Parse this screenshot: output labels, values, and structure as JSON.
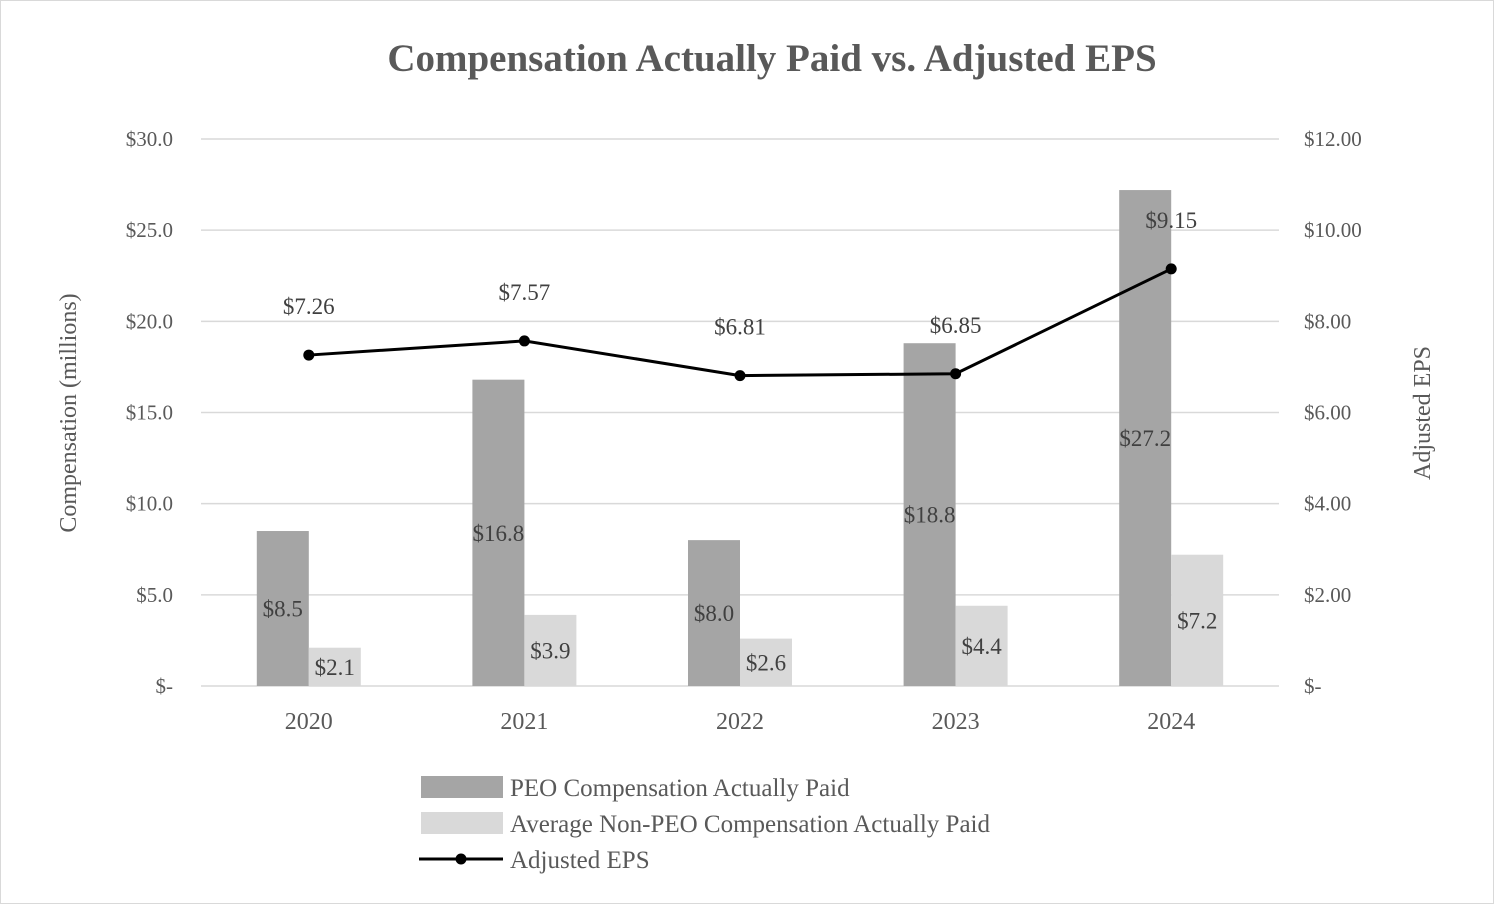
{
  "chart_data": {
    "type": "bar",
    "title": "Compensation Actually Paid vs. Adjusted EPS",
    "categories": [
      "2020",
      "2021",
      "2022",
      "2023",
      "2024"
    ],
    "series": [
      {
        "name": "PEO Compensation Actually Paid",
        "axis": "left",
        "kind": "bar",
        "color": "#a5a5a5",
        "values": [
          8.5,
          16.8,
          8.0,
          18.8,
          27.2
        ],
        "labels": [
          "$8.5",
          "$16.8",
          "$8.0",
          "$18.8",
          "$27.2"
        ]
      },
      {
        "name": "Average Non-PEO Compensation Actually Paid",
        "axis": "left",
        "kind": "bar",
        "color": "#d9d9d9",
        "values": [
          2.1,
          3.9,
          2.6,
          4.4,
          7.2
        ],
        "labels": [
          "$2.1",
          "$3.9",
          "$2.6",
          "$4.4",
          "$7.2"
        ]
      },
      {
        "name": "Adjusted EPS",
        "axis": "right",
        "kind": "line",
        "color": "#000000",
        "values": [
          7.26,
          7.57,
          6.81,
          6.85,
          9.15
        ],
        "labels": [
          "$7.26",
          "$7.57",
          "$6.81",
          "$6.85",
          "$9.15"
        ]
      }
    ],
    "y_left": {
      "label": "Compensation (millions)",
      "range": [
        0,
        30
      ],
      "ticks": [
        0,
        5,
        10,
        15,
        20,
        25,
        30
      ],
      "tick_labels": [
        "$-",
        "$5.0",
        "$10.0",
        "$15.0",
        "$20.0",
        "$25.0",
        "$30.0"
      ]
    },
    "y_right": {
      "label": "Adjusted EPS",
      "range": [
        0,
        12
      ],
      "ticks": [
        0,
        2,
        4,
        6,
        8,
        10,
        12
      ],
      "tick_labels": [
        "$-",
        "$2.00",
        "$4.00",
        "$6.00",
        "$8.00",
        "$10.00",
        "$12.00"
      ]
    },
    "grid": true,
    "legend_position": "bottom"
  }
}
